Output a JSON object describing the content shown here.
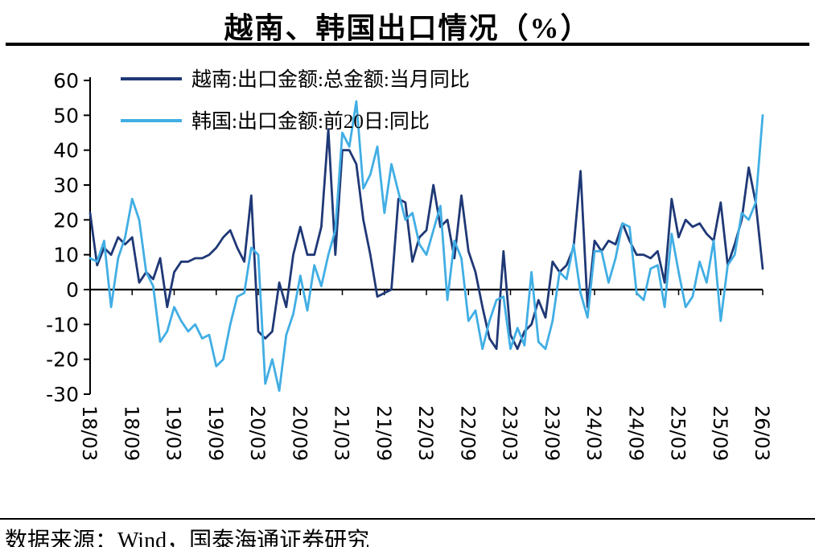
{
  "page": {
    "title": "越南、韩国出口情况（%）"
  },
  "footer": {
    "source": "数据来源：Wind，国泰海通证券研究"
  },
  "chart_data": {
    "type": "line",
    "title": "越南、韩国出口情况（%）",
    "ylim": [
      -30,
      60
    ],
    "y_ticks": [
      60,
      50,
      40,
      30,
      20,
      10,
      0,
      -10,
      -20,
      -30
    ],
    "grid": false,
    "legend_position": "top-left",
    "x_label_step": 6,
    "x": [
      "18/03",
      "18/04",
      "18/05",
      "18/06",
      "18/07",
      "18/08",
      "18/09",
      "18/10",
      "18/11",
      "18/12",
      "19/01",
      "19/02",
      "19/03",
      "19/04",
      "19/05",
      "19/06",
      "19/07",
      "19/08",
      "19/09",
      "19/10",
      "19/11",
      "19/12",
      "20/01",
      "20/02",
      "20/03",
      "20/04",
      "20/05",
      "20/06",
      "20/07",
      "20/08",
      "20/09",
      "20/10",
      "20/11",
      "20/12",
      "21/01",
      "21/02",
      "21/03",
      "21/04",
      "21/05",
      "21/06",
      "21/07",
      "21/08",
      "21/09",
      "21/10",
      "21/11",
      "21/12",
      "22/01",
      "22/02",
      "22/03",
      "22/04",
      "22/05",
      "22/06",
      "22/07",
      "22/08",
      "22/09",
      "22/10",
      "22/11",
      "22/12",
      "23/01",
      "23/02",
      "23/03",
      "23/04",
      "23/05",
      "23/06",
      "23/07",
      "23/08",
      "23/09",
      "23/10",
      "23/11",
      "23/12",
      "24/01",
      "24/02",
      "24/03",
      "24/04",
      "24/05",
      "24/06",
      "24/07",
      "24/08",
      "24/09",
      "24/10",
      "24/11",
      "24/12",
      "25/01",
      "25/02",
      "25/03",
      "25/04",
      "25/05",
      "25/06",
      "25/07",
      "25/08",
      "25/09",
      "25/10",
      "25/11",
      "25/12",
      "26/01",
      "26/02",
      "26/03"
    ],
    "series": [
      {
        "name": "越南:出口金额:总金额:当月同比",
        "color": "#1F3876",
        "values": [
          22,
          7,
          12,
          10,
          15,
          13,
          15,
          2,
          5,
          3,
          9,
          -5,
          5,
          8,
          8,
          9,
          9,
          10,
          12,
          15,
          17,
          12,
          8,
          27,
          -12,
          -14,
          -12,
          2,
          -5,
          10,
          18,
          10,
          10,
          18,
          46,
          10,
          40,
          40,
          36,
          20,
          10,
          -2,
          -1,
          0,
          26,
          25,
          8,
          15,
          17,
          30,
          18,
          20,
          9,
          27,
          11,
          5,
          -5,
          -14,
          -17,
          11,
          -13,
          -17,
          -12,
          -10,
          -3,
          -8,
          8,
          5,
          7,
          12,
          34,
          -5,
          14,
          11,
          14,
          13,
          19,
          14,
          10,
          10,
          9,
          11,
          2,
          26,
          15,
          20,
          18,
          19,
          16,
          14,
          25,
          7,
          13,
          20,
          35,
          25,
          6
        ]
      },
      {
        "name": "韩国:出口金额:前20日:同比",
        "color": "#41AEE4",
        "values": [
          9,
          8,
          14,
          -5,
          9,
          15,
          26,
          20,
          5,
          1,
          -15,
          -12,
          -5,
          -9,
          -12,
          -10,
          -14,
          -13,
          -22,
          -20,
          -10,
          -2,
          -1,
          12,
          10,
          -27,
          -20,
          -29,
          -13,
          -7,
          4,
          -6,
          7,
          1,
          10,
          17,
          45,
          41,
          54,
          29,
          33,
          41,
          22,
          36,
          28,
          20,
          22,
          13,
          10,
          17,
          24,
          -3,
          14,
          9,
          -9,
          -6,
          -17,
          -9,
          -3,
          -2,
          -17,
          -11,
          -16,
          5,
          -15,
          -17,
          -9,
          5,
          3,
          13,
          -1,
          -8,
          11,
          11,
          2,
          9,
          19,
          18,
          -1,
          -3,
          6,
          7,
          -5,
          16,
          5,
          -5,
          -2,
          8,
          2,
          14,
          -9,
          7,
          10,
          22,
          20,
          25,
          50
        ]
      }
    ]
  }
}
